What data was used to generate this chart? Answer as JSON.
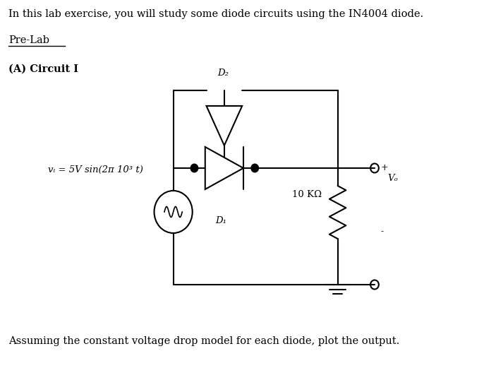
{
  "title_text": "In this lab exercise, you will study some diode circuits using the IN4004 diode.",
  "prelab_text": "Pre-Lab",
  "circuit_label": "(A) Circuit I",
  "source_label": "vᵢ = 5V sin(2π 10³ t)",
  "d1_label": "D₁",
  "d2_label": "D₂",
  "resistor_label": "10 KΩ",
  "vo_label": "Vₒ",
  "plus_label": "+",
  "minus_label": "-",
  "bottom_text": "Assuming the constant voltage drop model for each diode, plot the output.",
  "bg_color": "#ffffff",
  "line_color": "#000000",
  "font_color": "#000000",
  "figsize": [
    6.86,
    5.38
  ],
  "dpi": 100
}
